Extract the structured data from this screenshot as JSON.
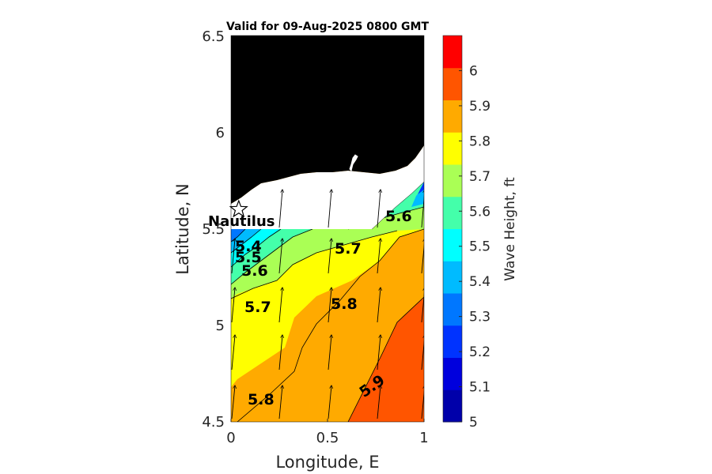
{
  "map": {
    "title": "Valid for 09-Aug-2025 0800 GMT",
    "x_label": "Longitude, E",
    "y_label": "Latitude, N",
    "x_ticks": [
      "0",
      "0.5",
      "1"
    ],
    "y_ticks": [
      "4.5",
      "5",
      "5.5",
      "6",
      "6.5"
    ],
    "x_range": [
      0,
      1
    ],
    "y_range": [
      4.5,
      6.5
    ],
    "place_marker": {
      "name": "Nautilus",
      "lon": 0.04,
      "lat": 5.6,
      "symbol": "star-icon"
    },
    "contour_labels": [
      "5.4",
      "5.5",
      "5.6",
      "5.7",
      "5.6",
      "5.7",
      "5.8",
      "5.8",
      "5.9"
    ],
    "land_color": "#000000",
    "coast_color": "#ffffff"
  },
  "colorbar": {
    "label": "Wave Height, ft",
    "ticks": [
      "5",
      "5.1",
      "5.2",
      "5.3",
      "5.4",
      "5.5",
      "5.6",
      "5.7",
      "5.8",
      "5.9",
      "6"
    ],
    "range": [
      5.0,
      6.1
    ],
    "colors": [
      "#0000aa",
      "#0000dd",
      "#0033ff",
      "#0077ff",
      "#00bbff",
      "#00ffff",
      "#44ffaa",
      "#aaff55",
      "#ffff00",
      "#ffaa00",
      "#ff5500",
      "#ff0000"
    ]
  },
  "chart_data": {
    "type": "heatmap",
    "title": "Valid for 09-Aug-2025 0800 GMT",
    "xlabel": "Longitude, E",
    "ylabel": "Latitude, N",
    "xlim": [
      0,
      1
    ],
    "ylim": [
      4.5,
      6.5
    ],
    "colorbar_label": "Wave Height, ft",
    "colorbar_range": [
      5.0,
      6.1
    ],
    "contour_levels": [
      5.4,
      5.5,
      5.6,
      5.7,
      5.8,
      5.9
    ],
    "contour_label_values": [
      5.4,
      5.5,
      5.6,
      5.7,
      5.6,
      5.7,
      5.8,
      5.8,
      5.9
    ],
    "wave_direction": "northward (arrows point north, slightly east)"
  }
}
